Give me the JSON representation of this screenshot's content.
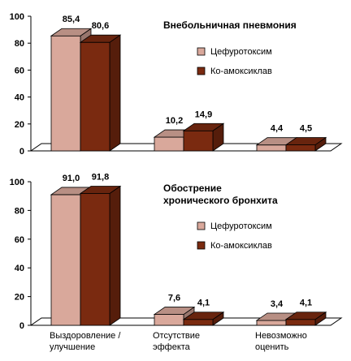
{
  "colors": {
    "series1": "#d9a89b",
    "series2": "#7a2a10",
    "axis": "#000000"
  },
  "chart_data": [
    {
      "type": "bar",
      "title_lines": [
        "Внебольничная пневмония"
      ],
      "categories": [
        "Выздоровление / улучшение",
        "Отсутствие эффекта",
        "Невозможно оценить"
      ],
      "series": [
        {
          "name": "Цефуротоксим",
          "values": [
            85.4,
            10.2,
            4.4
          ],
          "labels": [
            "85,4",
            "10,2",
            "4,4"
          ]
        },
        {
          "name": "Ко-амоксиклав",
          "values": [
            80.6,
            14.9,
            4.5
          ],
          "labels": [
            "80,6",
            "14,9",
            "4,5"
          ]
        }
      ],
      "yticks": [
        "0",
        "20",
        "40",
        "60",
        "80",
        "100"
      ],
      "ylim": [
        0,
        100
      ],
      "legend": "right"
    },
    {
      "type": "bar",
      "title_lines": [
        "Обострение",
        "хронического бронхита"
      ],
      "categories": [
        "Выздоровление / улучшение",
        "Отсутствие эффекта",
        "Невозможно оценить"
      ],
      "category_lines": [
        [
          "Выздоровление /",
          "улучшение"
        ],
        [
          "Отсутствие",
          "эффекта"
        ],
        [
          "Невозможно",
          "оценить"
        ]
      ],
      "series": [
        {
          "name": "Цефуротоксим",
          "values": [
            91.0,
            7.6,
            3.4
          ],
          "labels": [
            "91,0",
            "7,6",
            "3,4"
          ]
        },
        {
          "name": "Ко-амоксиклав",
          "values": [
            91.8,
            4.1,
            4.1
          ],
          "labels": [
            "91,8",
            "4,1",
            "4,1"
          ]
        }
      ],
      "yticks": [
        "0",
        "20",
        "40",
        "60",
        "80",
        "100"
      ],
      "ylim": [
        0,
        100
      ],
      "legend": "right"
    }
  ]
}
